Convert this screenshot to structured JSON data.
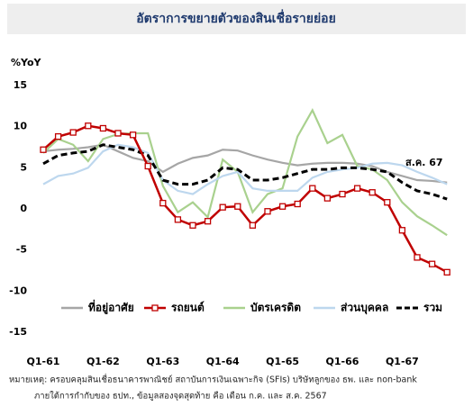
{
  "chart_data": {
    "type": "line",
    "title": "อัตราการขยายตัวของสินเชื่อรายย่อย",
    "y_label": "%YoY",
    "annotation": "ส.ค. 67",
    "categories": [
      "Q1-61",
      null,
      null,
      null,
      "Q1-62",
      null,
      null,
      null,
      "Q1-63",
      null,
      null,
      null,
      "Q1-64",
      null,
      null,
      null,
      "Q1-65",
      null,
      null,
      null,
      "Q1-66",
      null,
      null,
      null,
      "Q1-67",
      null,
      null,
      null
    ],
    "ylim": [
      -15,
      15
    ],
    "yticks": [
      -15,
      -10,
      -5,
      0,
      5,
      10,
      15
    ],
    "grid": false,
    "legend": "bottom",
    "series": [
      {
        "name": "ที่อยู่อาศัย",
        "color": "#a6a6a6",
        "style": "solid",
        "marker": "none",
        "values": [
          7.0,
          7.2,
          7.3,
          7.5,
          7.8,
          7.0,
          6.2,
          5.8,
          4.5,
          5.5,
          6.2,
          6.5,
          7.2,
          7.1,
          6.5,
          6.0,
          5.6,
          5.3,
          5.5,
          5.6,
          5.6,
          5.5,
          5.2,
          4.5,
          4.0,
          3.5,
          3.4,
          3.2
        ]
      },
      {
        "name": "รถยนต์",
        "color": "#c00000",
        "style": "solid",
        "marker": "square",
        "values": [
          7.2,
          8.8,
          9.3,
          10.1,
          9.8,
          9.2,
          9.0,
          5.2,
          0.7,
          -1.3,
          -2.0,
          -1.5,
          0.2,
          0.3,
          -2.0,
          -0.3,
          0.3,
          0.6,
          2.5,
          1.3,
          1.8,
          2.5,
          2.0,
          0.8,
          -2.6,
          -5.9,
          -6.7,
          -7.7
        ]
      },
      {
        "name": "บัตรเครดิต",
        "color": "#a9d18e",
        "style": "solid",
        "marker": "none",
        "values": [
          6.8,
          8.5,
          7.8,
          5.8,
          8.5,
          9.1,
          9.2,
          9.2,
          2.8,
          -0.4,
          0.8,
          -1.0,
          6.0,
          4.5,
          -0.4,
          1.8,
          2.5,
          8.8,
          12.0,
          8.0,
          9.0,
          5.2,
          4.8,
          3.5,
          0.8,
          -0.9,
          -2.0,
          -3.2
        ]
      },
      {
        "name": "ส่วนบุคคล",
        "color": "#bdd7ee",
        "style": "solid",
        "marker": "none",
        "values": [
          3.0,
          4.0,
          4.3,
          5.0,
          7.0,
          7.8,
          7.5,
          6.8,
          3.5,
          2.2,
          1.8,
          3.0,
          4.0,
          4.5,
          2.5,
          2.2,
          2.2,
          2.2,
          3.8,
          4.5,
          4.8,
          5.0,
          5.5,
          5.6,
          5.3,
          4.5,
          3.8,
          3.0
        ]
      },
      {
        "name": "รวม",
        "color": "#000000",
        "style": "dashed",
        "marker": "none",
        "values": [
          5.5,
          6.5,
          6.8,
          7.0,
          7.8,
          7.5,
          7.2,
          6.5,
          3.5,
          3.0,
          3.0,
          3.5,
          5.0,
          4.8,
          3.5,
          3.5,
          3.8,
          4.3,
          4.8,
          4.8,
          5.0,
          5.0,
          4.8,
          4.5,
          3.2,
          2.2,
          1.8,
          1.2
        ]
      }
    ],
    "notes": [
      "หมายเหตุ: ครอบคลุมสินเชื่อธนาคารพาณิชย์ สถาบันการเงินเฉพาะกิจ (SFIs) บริษัทลูกของ ธพ. และ non-bank",
      "ภายใต้การกำกับของ ธปท., ข้อมูลสองจุดสุดท้าย คือ เดือน ก.ค. และ ส.ค. 2567"
    ]
  }
}
